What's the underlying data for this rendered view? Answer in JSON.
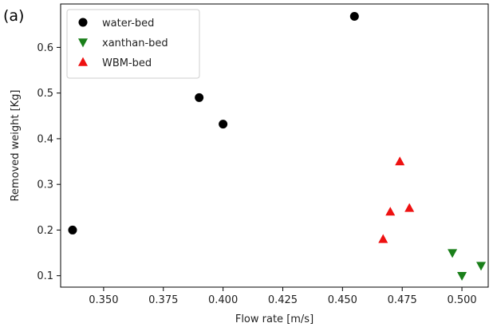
{
  "chart_data": {
    "type": "scatter",
    "panel_label": "(a)",
    "xlabel": "Flow rate [m/s]",
    "ylabel": "Removed weight [Kg]",
    "xlim": [
      0.332,
      0.511
    ],
    "ylim": [
      0.075,
      0.695
    ],
    "xticks": [
      {
        "value": 0.35,
        "label": "0.350"
      },
      {
        "value": 0.375,
        "label": "0.375"
      },
      {
        "value": 0.4,
        "label": "0.400"
      },
      {
        "value": 0.425,
        "label": "0.425"
      },
      {
        "value": 0.45,
        "label": "0.450"
      },
      {
        "value": 0.475,
        "label": "0.475"
      },
      {
        "value": 0.5,
        "label": "0.500"
      }
    ],
    "yticks": [
      {
        "value": 0.1,
        "label": "0.1"
      },
      {
        "value": 0.2,
        "label": "0.2"
      },
      {
        "value": 0.3,
        "label": "0.3"
      },
      {
        "value": 0.4,
        "label": "0.4"
      },
      {
        "value": 0.5,
        "label": "0.5"
      },
      {
        "value": 0.6,
        "label": "0.6"
      }
    ],
    "grid": false,
    "legend_position": "top-left",
    "series": [
      {
        "name": "water-bed",
        "marker": "circle",
        "color": "#000000",
        "points": [
          [
            0.337,
            0.2
          ],
          [
            0.39,
            0.49
          ],
          [
            0.4,
            0.432
          ],
          [
            0.455,
            0.668
          ]
        ]
      },
      {
        "name": "xanthan-bed",
        "marker": "triangle-down",
        "color": "#1a7f1a",
        "points": [
          [
            0.496,
            0.15
          ],
          [
            0.5,
            0.1
          ],
          [
            0.508,
            0.122
          ]
        ]
      },
      {
        "name": "WBM-bed",
        "marker": "triangle-up",
        "color": "#ee1111",
        "points": [
          [
            0.467,
            0.18
          ],
          [
            0.47,
            0.24
          ],
          [
            0.474,
            0.35
          ],
          [
            0.478,
            0.248
          ]
        ]
      }
    ]
  }
}
